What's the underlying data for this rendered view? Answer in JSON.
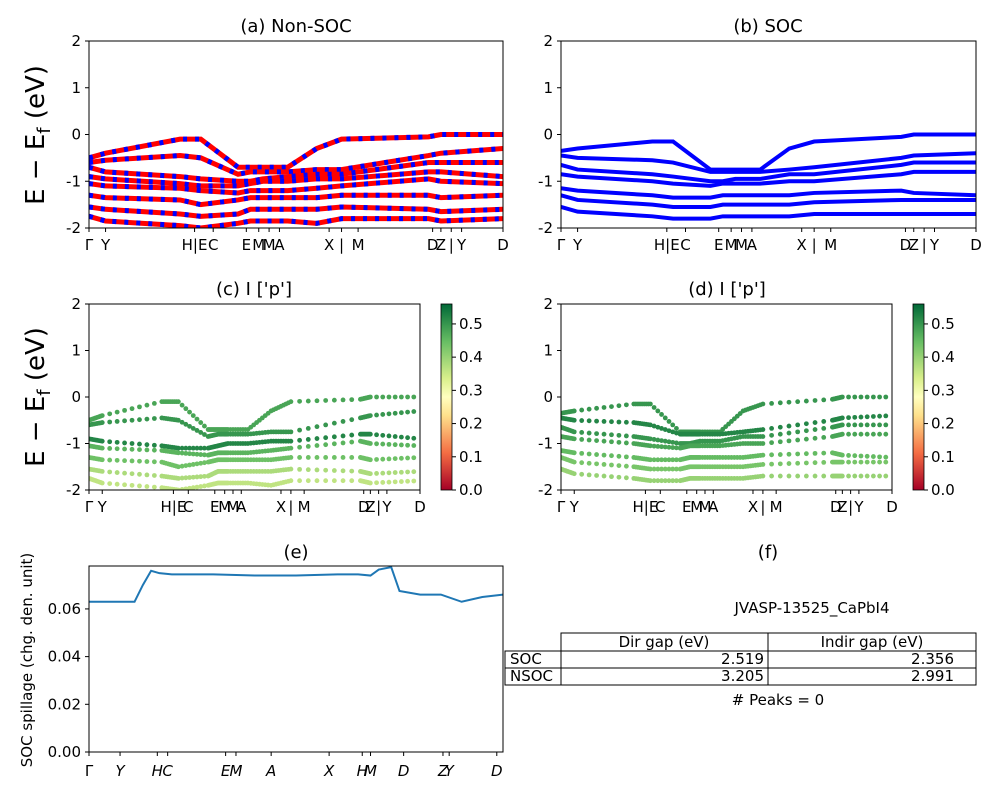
{
  "charts": {
    "a_title": "(a) Non-SOC",
    "b_title": "(b) SOC",
    "c_title": "(c)  I ['p']",
    "d_title": "(d) I ['p']",
    "e_title": "(e)",
    "f_title": "(f)",
    "ylabel_top": "E − E",
    "ylabel_sub": "f",
    "ylabel_unit": " (eV)",
    "ylabel_e": "SOC spillage (chg. den. unit)"
  },
  "kpath": {
    "labels_top": [
      "Γ",
      "Y",
      "H|E",
      "C",
      "E",
      "M",
      "M",
      "A",
      "X",
      "|",
      "M",
      "D",
      "Z",
      "|",
      "Y",
      "D"
    ],
    "top_text": [
      "Γ",
      "Y",
      "HEC",
      "EMMA",
      "XX | M",
      "DZ | Y",
      "D"
    ]
  },
  "table": {
    "material": "JVASP-13525_CaPbI4",
    "headers": [
      "Dir gap (eV)",
      "Indir gap (eV)"
    ],
    "rows": [
      {
        "label": "SOC",
        "dir": "2.519",
        "indir": "2.356"
      },
      {
        "label": "NSOC",
        "dir": "3.205",
        "indir": "2.991"
      }
    ],
    "peaks": "# Peaks = 0"
  },
  "colorbar_ticks": [
    "0.0",
    "0.1",
    "0.2",
    "0.3",
    "0.4",
    "0.5"
  ],
  "chart_data": [
    {
      "type": "line",
      "id": "a",
      "title": "(a) Non-SOC",
      "ylabel": "E − E_f (eV)",
      "ylim": [
        -2,
        2
      ],
      "yticks": [
        -2,
        -1,
        0,
        1,
        2
      ],
      "colors": [
        "#ff0000",
        "#0000ff"
      ],
      "x": [
        0,
        0.04,
        0.22,
        0.27,
        0.36,
        0.39,
        0.42,
        0.48,
        0.55,
        0.61,
        0.82,
        0.85,
        1.0
      ],
      "series": [
        {
          "values": [
            -0.5,
            -0.4,
            -0.1,
            -0.1,
            -0.7,
            -0.7,
            -0.7,
            -0.7,
            -0.3,
            -0.1,
            -0.05,
            0,
            0
          ]
        },
        {
          "values": [
            -0.6,
            -0.55,
            -0.45,
            -0.5,
            -0.85,
            -0.8,
            -0.8,
            -0.8,
            -0.75,
            -0.75,
            -0.45,
            -0.4,
            -0.3
          ]
        },
        {
          "values": [
            -0.7,
            -0.8,
            -0.9,
            -0.95,
            -1.0,
            -1.0,
            -0.95,
            -0.9,
            -0.85,
            -0.85,
            -0.6,
            -0.6,
            -0.6
          ]
        },
        {
          "values": [
            -0.9,
            -0.95,
            -1.05,
            -1.1,
            -1.1,
            -1.05,
            -1.0,
            -1.0,
            -0.95,
            -0.95,
            -0.8,
            -0.8,
            -0.9
          ]
        },
        {
          "values": [
            -1.05,
            -1.1,
            -1.15,
            -1.2,
            -1.25,
            -1.2,
            -1.2,
            -1.2,
            -1.15,
            -1.1,
            -0.95,
            -1.0,
            -1.05
          ]
        },
        {
          "values": [
            -1.3,
            -1.35,
            -1.4,
            -1.5,
            -1.4,
            -1.35,
            -1.35,
            -1.35,
            -1.35,
            -1.3,
            -1.3,
            -1.35,
            -1.3
          ]
        },
        {
          "values": [
            -1.55,
            -1.6,
            -1.7,
            -1.75,
            -1.7,
            -1.6,
            -1.6,
            -1.6,
            -1.6,
            -1.55,
            -1.6,
            -1.65,
            -1.6
          ]
        },
        {
          "values": [
            -1.75,
            -1.85,
            -1.95,
            -2.0,
            -1.9,
            -1.85,
            -1.85,
            -1.85,
            -1.9,
            -1.8,
            -1.8,
            -1.85,
            -1.8
          ]
        }
      ]
    },
    {
      "type": "line",
      "id": "b",
      "title": "(b) SOC",
      "ylim": [
        -2,
        2
      ],
      "yticks": [
        -2,
        -1,
        0,
        1,
        2
      ],
      "colors": [
        "#0000ff"
      ],
      "x": [
        0,
        0.04,
        0.22,
        0.27,
        0.36,
        0.39,
        0.42,
        0.48,
        0.55,
        0.61,
        0.82,
        0.85,
        1.0
      ],
      "series": [
        {
          "values": [
            -0.35,
            -0.3,
            -0.15,
            -0.15,
            -0.75,
            -0.75,
            -0.75,
            -0.75,
            -0.3,
            -0.15,
            -0.05,
            0,
            0
          ]
        },
        {
          "values": [
            -0.45,
            -0.5,
            -0.55,
            -0.6,
            -0.8,
            -0.8,
            -0.8,
            -0.8,
            -0.75,
            -0.7,
            -0.5,
            -0.45,
            -0.4
          ]
        },
        {
          "values": [
            -0.65,
            -0.75,
            -0.85,
            -0.9,
            -1.0,
            -1.0,
            -0.95,
            -0.95,
            -0.85,
            -0.85,
            -0.65,
            -0.6,
            -0.6
          ]
        },
        {
          "values": [
            -0.85,
            -0.9,
            -1.0,
            -1.05,
            -1.1,
            -1.05,
            -1.05,
            -1.05,
            -1.0,
            -1.0,
            -0.85,
            -0.8,
            -0.8
          ]
        },
        {
          "values": [
            -1.15,
            -1.2,
            -1.3,
            -1.35,
            -1.35,
            -1.3,
            -1.3,
            -1.3,
            -1.3,
            -1.25,
            -1.2,
            -1.25,
            -1.3
          ]
        },
        {
          "values": [
            -1.3,
            -1.4,
            -1.5,
            -1.55,
            -1.55,
            -1.5,
            -1.5,
            -1.5,
            -1.5,
            -1.45,
            -1.4,
            -1.4,
            -1.4
          ]
        },
        {
          "values": [
            -1.55,
            -1.65,
            -1.75,
            -1.8,
            -1.8,
            -1.75,
            -1.75,
            -1.75,
            -1.75,
            -1.7,
            -1.7,
            -1.7,
            -1.7
          ]
        }
      ]
    },
    {
      "type": "scatter",
      "id": "c",
      "title": "(c)  I ['p']",
      "ylim": [
        -2,
        2
      ],
      "yticks": [
        -2,
        -1,
        0,
        1,
        2
      ],
      "colorbar": {
        "range": [
          0.0,
          0.56
        ],
        "ticks": [
          0.0,
          0.1,
          0.2,
          0.3,
          0.4,
          0.5
        ],
        "cmap": "RdYlGn"
      },
      "x": [
        0,
        0.04,
        0.22,
        0.27,
        0.36,
        0.39,
        0.42,
        0.48,
        0.55,
        0.61,
        0.82,
        0.85,
        1.0
      ],
      "series": [
        {
          "values": [
            -0.5,
            -0.4,
            -0.1,
            -0.1,
            -0.7,
            -0.7,
            -0.7,
            -0.7,
            -0.3,
            -0.1,
            -0.05,
            0,
            0
          ],
          "weight": 0.48
        },
        {
          "values": [
            -0.6,
            -0.55,
            -0.45,
            -0.5,
            -0.85,
            -0.8,
            -0.8,
            -0.8,
            -0.75,
            -0.75,
            -0.45,
            -0.4,
            -0.3
          ],
          "weight": 0.5
        },
        {
          "values": [
            -0.9,
            -0.95,
            -1.05,
            -1.1,
            -1.1,
            -1.05,
            -1.0,
            -1.0,
            -0.95,
            -0.95,
            -0.8,
            -0.8,
            -0.9
          ],
          "weight": 0.52
        },
        {
          "values": [
            -1.05,
            -1.1,
            -1.15,
            -1.2,
            -1.25,
            -1.2,
            -1.2,
            -1.2,
            -1.15,
            -1.1,
            -0.95,
            -1.0,
            -1.05
          ],
          "weight": 0.46
        },
        {
          "values": [
            -1.3,
            -1.35,
            -1.4,
            -1.5,
            -1.4,
            -1.35,
            -1.35,
            -1.35,
            -1.35,
            -1.3,
            -1.3,
            -1.35,
            -1.3
          ],
          "weight": 0.44
        },
        {
          "values": [
            -1.55,
            -1.6,
            -1.7,
            -1.75,
            -1.7,
            -1.6,
            -1.6,
            -1.6,
            -1.6,
            -1.55,
            -1.6,
            -1.65,
            -1.6
          ],
          "weight": 0.38
        },
        {
          "values": [
            -1.75,
            -1.85,
            -1.95,
            -2.0,
            -1.9,
            -1.85,
            -1.85,
            -1.85,
            -1.9,
            -1.8,
            -1.8,
            -1.85,
            -1.8
          ],
          "weight": 0.36
        }
      ]
    },
    {
      "type": "scatter",
      "id": "d",
      "title": "(d) I ['p']",
      "ylim": [
        -2,
        2
      ],
      "yticks": [
        -2,
        -1,
        0,
        1,
        2
      ],
      "colorbar": {
        "range": [
          0.0,
          0.56
        ],
        "ticks": [
          0.0,
          0.1,
          0.2,
          0.3,
          0.4,
          0.5
        ],
        "cmap": "RdYlGn"
      },
      "x": [
        0,
        0.04,
        0.22,
        0.27,
        0.36,
        0.39,
        0.42,
        0.48,
        0.55,
        0.61,
        0.82,
        0.85,
        1.0
      ],
      "series": [
        {
          "values": [
            -0.35,
            -0.3,
            -0.15,
            -0.15,
            -0.75,
            -0.75,
            -0.75,
            -0.75,
            -0.3,
            -0.15,
            -0.05,
            0,
            0
          ],
          "weight": 0.5
        },
        {
          "values": [
            -0.45,
            -0.5,
            -0.55,
            -0.6,
            -0.8,
            -0.8,
            -0.8,
            -0.8,
            -0.75,
            -0.7,
            -0.5,
            -0.45,
            -0.4
          ],
          "weight": 0.52
        },
        {
          "values": [
            -0.65,
            -0.75,
            -0.85,
            -0.9,
            -1.0,
            -1.0,
            -0.95,
            -0.95,
            -0.85,
            -0.85,
            -0.65,
            -0.6,
            -0.6
          ],
          "weight": 0.5
        },
        {
          "values": [
            -0.85,
            -0.9,
            -1.0,
            -1.05,
            -1.1,
            -1.05,
            -1.05,
            -1.05,
            -1.0,
            -1.0,
            -0.85,
            -0.8,
            -0.8
          ],
          "weight": 0.48
        },
        {
          "values": [
            -1.15,
            -1.2,
            -1.3,
            -1.35,
            -1.35,
            -1.3,
            -1.3,
            -1.3,
            -1.3,
            -1.25,
            -1.2,
            -1.25,
            -1.3
          ],
          "weight": 0.45
        },
        {
          "values": [
            -1.3,
            -1.4,
            -1.5,
            -1.55,
            -1.55,
            -1.5,
            -1.5,
            -1.5,
            -1.5,
            -1.45,
            -1.4,
            -1.4,
            -1.4
          ],
          "weight": 0.43
        },
        {
          "values": [
            -1.55,
            -1.65,
            -1.75,
            -1.8,
            -1.8,
            -1.75,
            -1.75,
            -1.75,
            -1.75,
            -1.7,
            -1.7,
            -1.7,
            -1.7
          ],
          "weight": 0.4
        }
      ]
    },
    {
      "type": "line",
      "id": "e",
      "title": "(e)",
      "ylabel": "SOC spillage (chg. den. unit)",
      "ylim": [
        0.0,
        0.078
      ],
      "yticks": [
        0.0,
        0.02,
        0.04,
        0.06
      ],
      "ytick_labels": [
        "0.00",
        "0.02",
        "0.04",
        "0.06"
      ],
      "xtick_labels": [
        "Γ",
        "Y",
        "H",
        "C",
        "E",
        "M",
        "A",
        "X",
        "H",
        "M",
        "D",
        "Z",
        "Y",
        "D"
      ],
      "color": "#1f77b4",
      "x": [
        0,
        0.08,
        0.11,
        0.13,
        0.15,
        0.17,
        0.2,
        0.3,
        0.4,
        0.5,
        0.6,
        0.65,
        0.68,
        0.7,
        0.73,
        0.75,
        0.8,
        0.85,
        0.9,
        0.95,
        1.0
      ],
      "values": [
        0.063,
        0.063,
        0.063,
        0.07,
        0.076,
        0.075,
        0.0745,
        0.0745,
        0.074,
        0.074,
        0.0745,
        0.0745,
        0.074,
        0.0765,
        0.0775,
        0.0675,
        0.066,
        0.066,
        0.063,
        0.065,
        0.066
      ]
    }
  ]
}
